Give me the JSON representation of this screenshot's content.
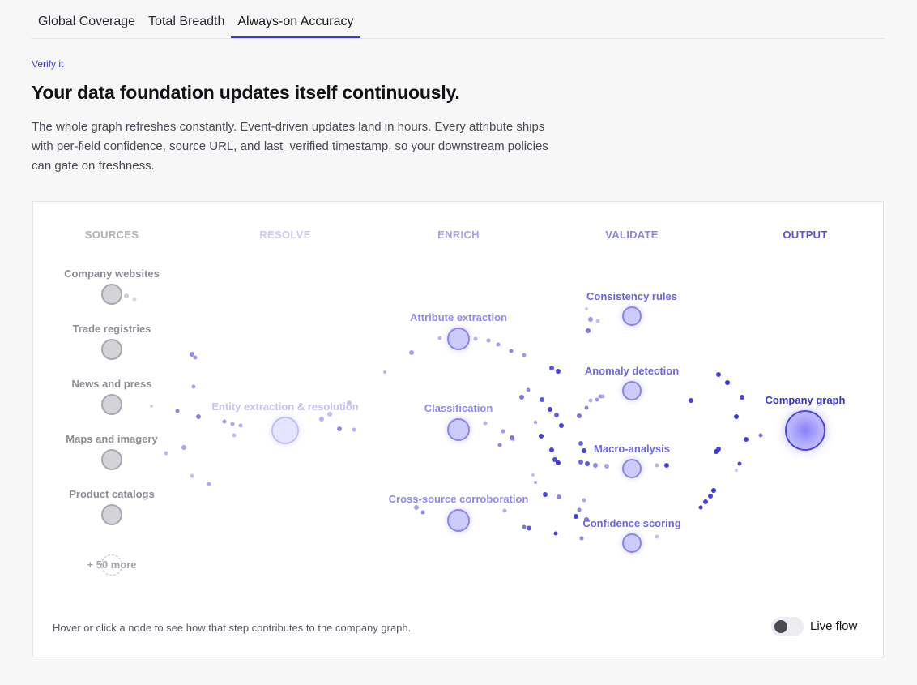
{
  "tabs": [
    {
      "label": "Global Coverage"
    },
    {
      "label": "Total Breadth"
    },
    {
      "label": "Always-on Accuracy"
    }
  ],
  "eyebrow": "Verify it",
  "headline": "Your data foundation updates itself continuously.",
  "description": "The whole graph refreshes constantly. Event-driven updates land in hours. Every attribute ships with per-field confidence, source URL, and last_verified timestamp, so your downstream policies can gate on freshness.",
  "stages": {
    "sources": "SOURCES",
    "resolve": "RESOLVE",
    "enrich": "ENRICH",
    "validate": "VALIDATE",
    "output": "OUTPUT"
  },
  "stage_colors": {
    "sources": "#b0b0b8",
    "resolve": "#cdc9f8",
    "enrich": "#a9a3f0",
    "validate": "#8b84ea",
    "output": "#5a53d8"
  },
  "sources": [
    {
      "label": "Company websites"
    },
    {
      "label": "Trade registries"
    },
    {
      "label": "News and press"
    },
    {
      "label": "Maps and imagery"
    },
    {
      "label": "Product catalogs"
    }
  ],
  "more_sources": "+ 50 more",
  "resolve_node": {
    "label": "Entity extraction & resolution"
  },
  "enrich_nodes": [
    {
      "label": "Attribute extraction"
    },
    {
      "label": "Classification"
    },
    {
      "label": "Cross-source corroboration"
    }
  ],
  "validate_nodes": [
    {
      "label": "Consistency rules"
    },
    {
      "label": "Anomaly detection"
    },
    {
      "label": "Macro-analysis"
    },
    {
      "label": "Confidence scoring"
    }
  ],
  "output_node": {
    "label": "Company graph"
  },
  "hint": "Hover or click a node to see how that step contributes to the company graph.",
  "live_flow": {
    "label": "Live flow",
    "enabled": false
  }
}
